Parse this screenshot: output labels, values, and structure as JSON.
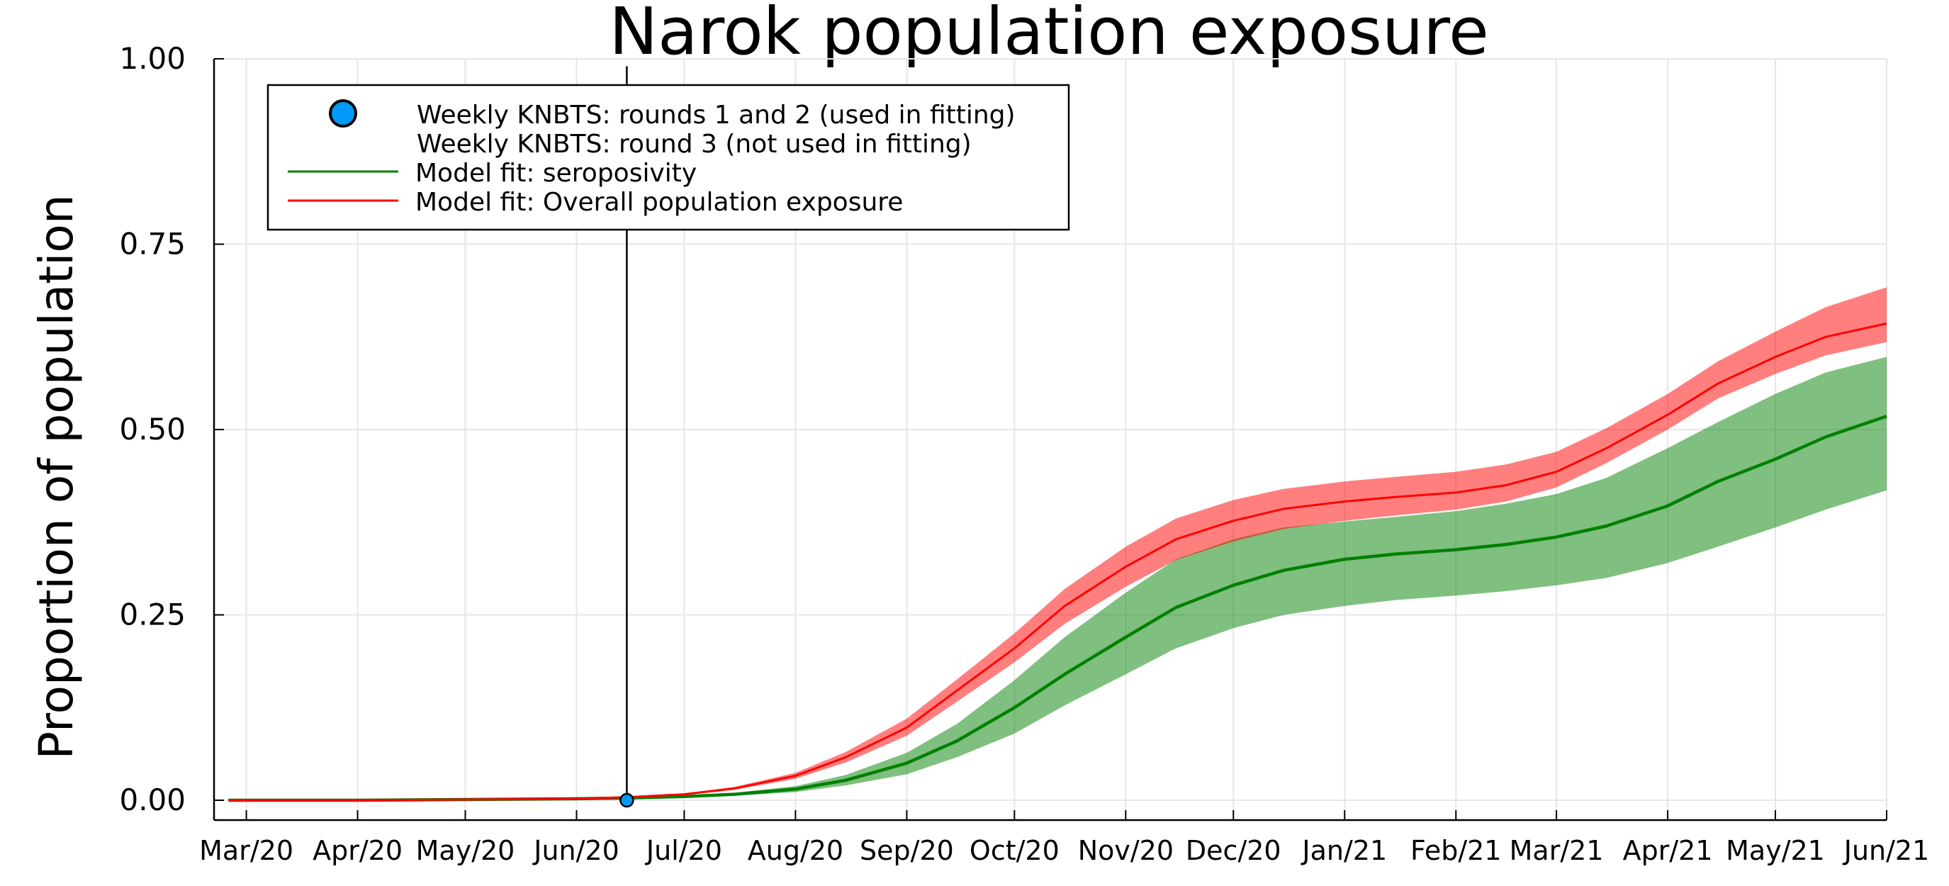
{
  "chart_data": {
    "type": "line",
    "title": "Narok population exposure",
    "xlabel": "",
    "ylabel": "Proportion of population",
    "ylim": [
      0,
      1
    ],
    "yticks": [
      0,
      0.25,
      0.5,
      0.75,
      1.0
    ],
    "ytick_labels": [
      "0.00",
      "0.25",
      "0.50",
      "0.75",
      "1.00"
    ],
    "x_start": "2020-02-21",
    "x_end": "2021-06-01",
    "xticks": [
      "2020-03-01",
      "2020-04-01",
      "2020-05-01",
      "2020-06-01",
      "2020-07-01",
      "2020-08-01",
      "2020-09-01",
      "2020-10-01",
      "2020-11-01",
      "2020-12-01",
      "2021-01-01",
      "2021-02-01",
      "2021-03-01",
      "2021-04-01",
      "2021-05-01",
      "2021-06-01"
    ],
    "xtick_labels": [
      "Mar/20",
      "Apr/20",
      "May/20",
      "Jun/20",
      "Jul/20",
      "Aug/20",
      "Sep/20",
      "Oct/20",
      "Nov/20",
      "Dec/20",
      "Jan/21",
      "Feb/21",
      "Mar/21",
      "Apr/21",
      "May/21",
      "Jun/21"
    ],
    "grid": true,
    "legend_position": "top-left",
    "legend": [
      {
        "label": "Weekly KNBTS: rounds 1 and 2 (used in fitting)",
        "marker": "circle",
        "color": "#009af9"
      },
      {
        "label": "Weekly KNBTS: round 3 (not used in fitting)",
        "marker": "none",
        "color": "#000000"
      },
      {
        "label": "Model fit: seroposivity",
        "marker": "line",
        "color": "#008000"
      },
      {
        "label": "Model fit: Overall population exposure",
        "marker": "line",
        "color": "#ff0000"
      }
    ],
    "points": [
      {
        "series": "Weekly KNBTS: rounds 1 and 2 (used in fitting)",
        "x": "2020-06-15",
        "y": 0.0,
        "ci": [
          0.0,
          0.99
        ]
      }
    ],
    "series": [
      {
        "name": "Model fit: seroposivity",
        "color": "#008000",
        "band_color": "#008000",
        "x": [
          "2020-02-25",
          "2020-04-01",
          "2020-05-01",
          "2020-06-01",
          "2020-06-15",
          "2020-07-01",
          "2020-07-15",
          "2020-08-01",
          "2020-08-15",
          "2020-09-01",
          "2020-09-15",
          "2020-10-01",
          "2020-10-15",
          "2020-11-01",
          "2020-11-15",
          "2020-12-01",
          "2020-12-15",
          "2021-01-01",
          "2021-01-15",
          "2021-02-01",
          "2021-02-15",
          "2021-03-01",
          "2021-03-15",
          "2021-04-01",
          "2021-04-15",
          "2021-05-01",
          "2021-05-15",
          "2021-06-01"
        ],
        "values": [
          0,
          0,
          0.001,
          0.002,
          0.003,
          0.005,
          0.008,
          0.015,
          0.027,
          0.05,
          0.08,
          0.125,
          0.17,
          0.22,
          0.26,
          0.29,
          0.31,
          0.325,
          0.332,
          0.338,
          0.345,
          0.355,
          0.37,
          0.397,
          0.43,
          0.46,
          0.49,
          0.518
        ],
        "lower": [
          0,
          0,
          0.001,
          0.002,
          0.003,
          0.004,
          0.006,
          0.011,
          0.02,
          0.035,
          0.058,
          0.09,
          0.128,
          0.17,
          0.205,
          0.232,
          0.25,
          0.262,
          0.27,
          0.276,
          0.282,
          0.29,
          0.3,
          0.32,
          0.342,
          0.368,
          0.392,
          0.418
        ],
        "upper": [
          0,
          0,
          0.001,
          0.002,
          0.004,
          0.006,
          0.01,
          0.019,
          0.034,
          0.064,
          0.103,
          0.162,
          0.22,
          0.28,
          0.325,
          0.352,
          0.368,
          0.376,
          0.382,
          0.39,
          0.4,
          0.413,
          0.435,
          0.475,
          0.51,
          0.548,
          0.577,
          0.598
        ]
      },
      {
        "name": "Model fit: Overall population exposure",
        "color": "#ff0000",
        "band_color": "#ff0000",
        "x": [
          "2020-02-25",
          "2020-04-01",
          "2020-05-01",
          "2020-06-01",
          "2020-06-15",
          "2020-07-01",
          "2020-07-15",
          "2020-08-01",
          "2020-08-15",
          "2020-09-01",
          "2020-09-15",
          "2020-10-01",
          "2020-10-15",
          "2020-11-01",
          "2020-11-15",
          "2020-12-01",
          "2020-12-15",
          "2021-01-01",
          "2021-01-15",
          "2021-02-01",
          "2021-02-15",
          "2021-03-01",
          "2021-03-15",
          "2021-04-01",
          "2021-04-15",
          "2021-05-01",
          "2021-05-15",
          "2021-06-01"
        ],
        "values": [
          0,
          0,
          0.001,
          0.002,
          0.004,
          0.008,
          0.016,
          0.033,
          0.058,
          0.098,
          0.148,
          0.205,
          0.262,
          0.315,
          0.352,
          0.377,
          0.393,
          0.403,
          0.409,
          0.415,
          0.425,
          0.443,
          0.475,
          0.52,
          0.562,
          0.598,
          0.625,
          0.643
        ],
        "lower": [
          0,
          0,
          0.001,
          0.002,
          0.004,
          0.007,
          0.014,
          0.029,
          0.051,
          0.087,
          0.133,
          0.186,
          0.238,
          0.288,
          0.324,
          0.349,
          0.366,
          0.377,
          0.384,
          0.392,
          0.403,
          0.422,
          0.455,
          0.5,
          0.542,
          0.575,
          0.6,
          0.618
        ],
        "upper": [
          0,
          0,
          0.001,
          0.002,
          0.005,
          0.009,
          0.018,
          0.037,
          0.065,
          0.11,
          0.163,
          0.225,
          0.285,
          0.342,
          0.38,
          0.405,
          0.42,
          0.43,
          0.436,
          0.443,
          0.453,
          0.47,
          0.502,
          0.548,
          0.592,
          0.632,
          0.665,
          0.692
        ]
      }
    ]
  }
}
